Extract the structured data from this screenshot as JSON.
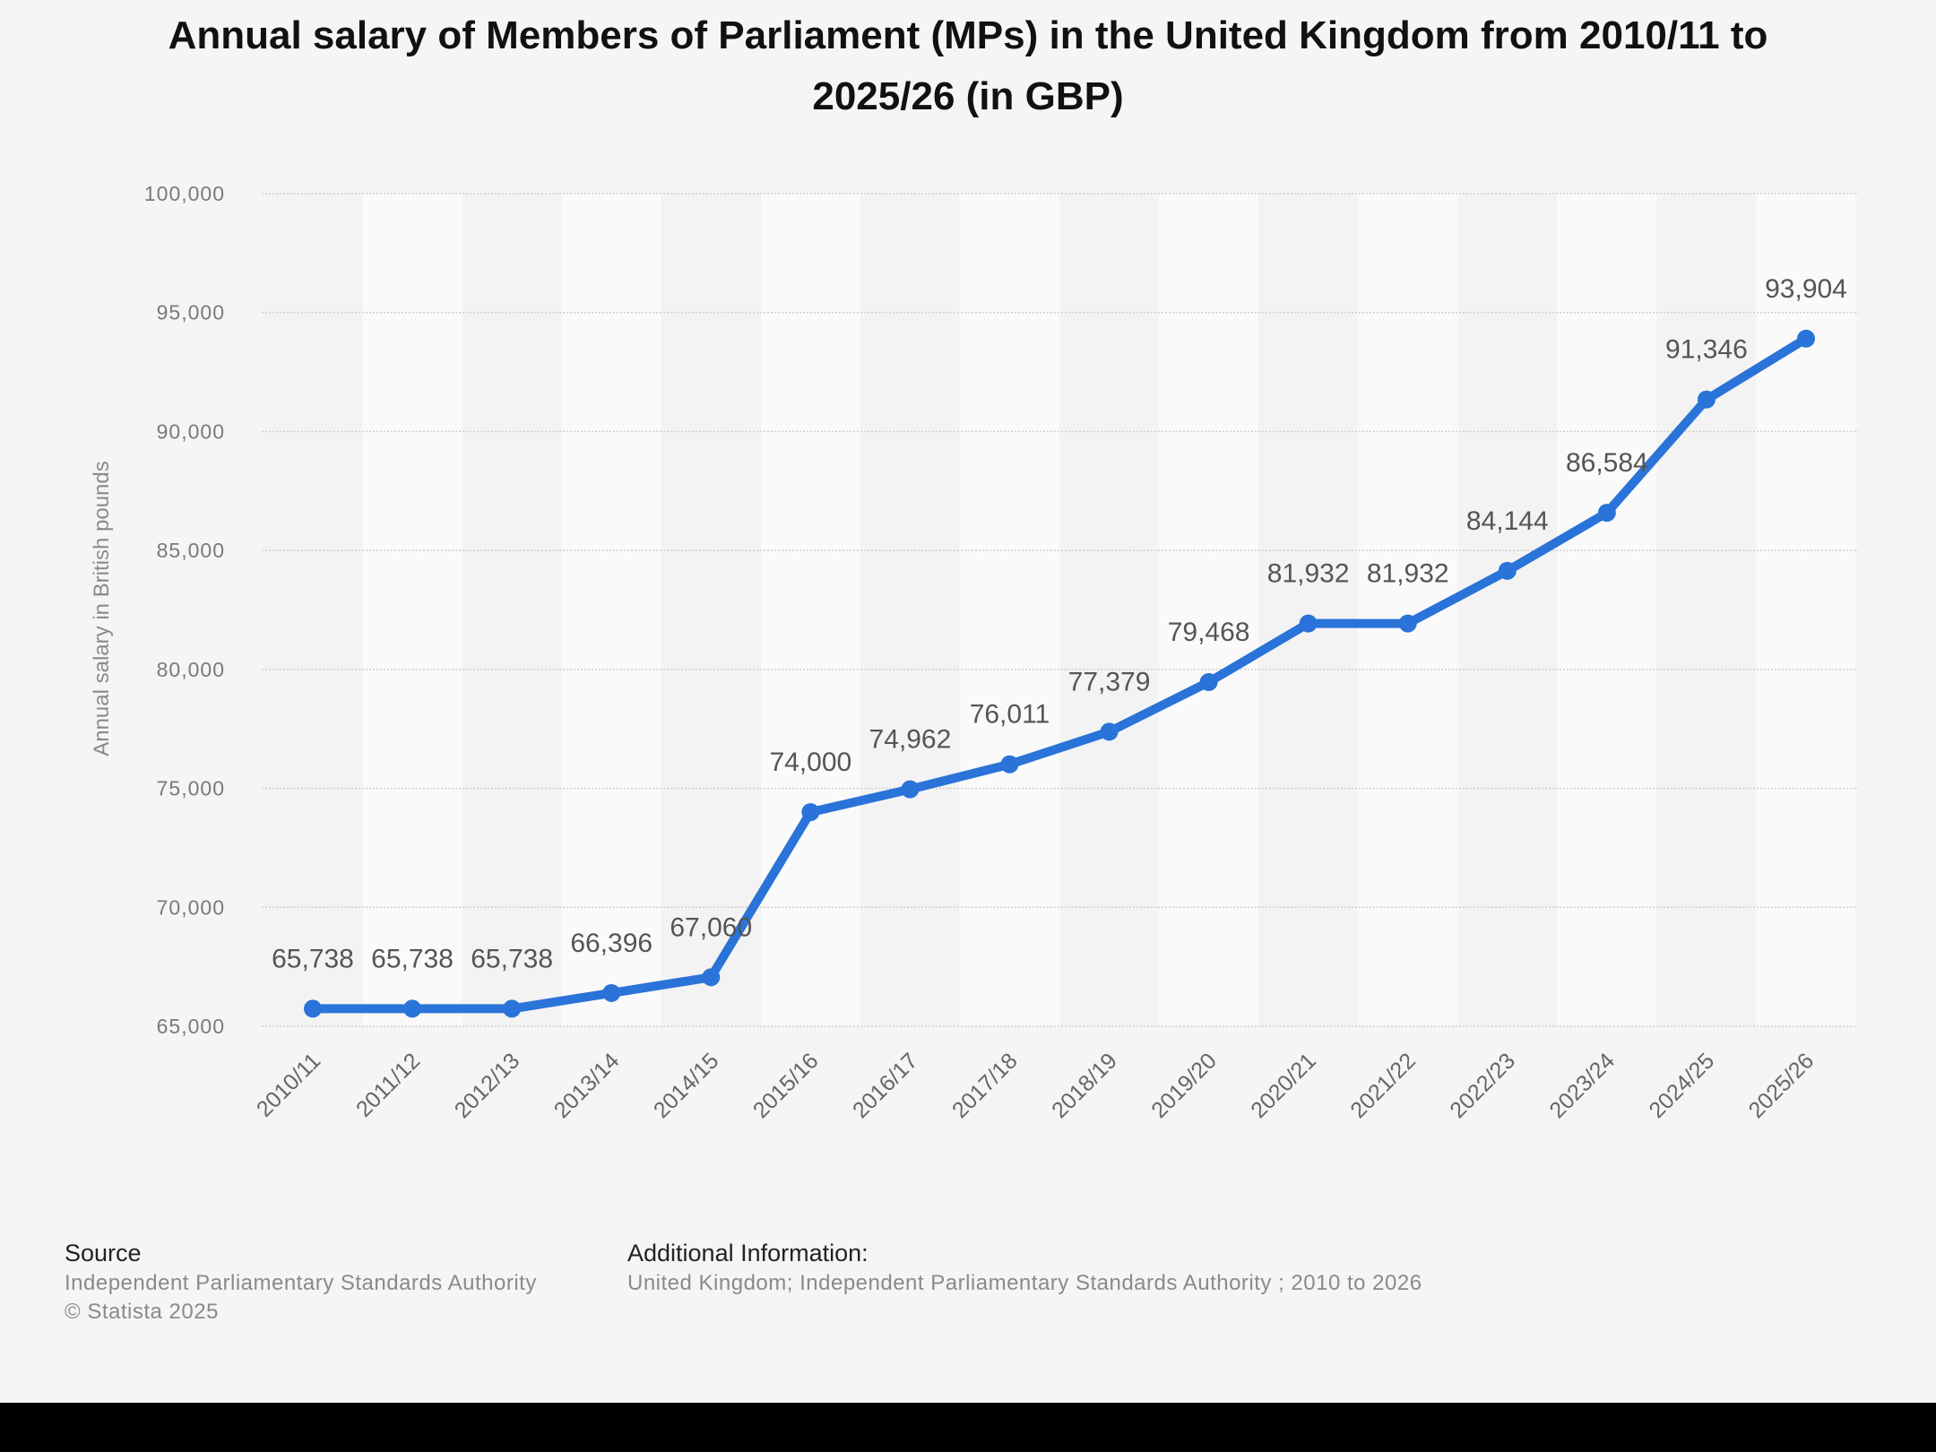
{
  "chart_data": {
    "type": "line",
    "title": "Annual salary of Members of Parliament (MPs) in the United Kingdom from 2010/11 to 2025/26 (in GBP)",
    "title_lines": [
      "Annual salary of Members of Parliament (MPs) in the United Kingdom from 2010/11 to",
      "2025/26 (in GBP)"
    ],
    "xlabel": "",
    "ylabel": "Annual salary in British pounds",
    "ylim": [
      65000,
      100000
    ],
    "yticks": [
      65000,
      70000,
      75000,
      80000,
      85000,
      90000,
      95000,
      100000
    ],
    "ytick_labels": [
      "65,000",
      "70,000",
      "75,000",
      "80,000",
      "85,000",
      "90,000",
      "95,000",
      "100,000"
    ],
    "grid": true,
    "legend": "none",
    "categories": [
      "2010/11",
      "2011/12",
      "2012/13",
      "2013/14",
      "2014/15",
      "2015/16",
      "2016/17",
      "2017/18",
      "2018/19",
      "2019/20",
      "2020/21",
      "2021/22",
      "2022/23",
      "2023/24",
      "2024/25",
      "2025/26"
    ],
    "series": [
      {
        "name": "Annual salary",
        "color": "#2a73d9",
        "values": [
          65738,
          65738,
          65738,
          66396,
          67060,
          74000,
          74962,
          76011,
          77379,
          79468,
          81932,
          81932,
          84144,
          86584,
          91346,
          93904
        ],
        "labels": [
          "65,738",
          "65,738",
          "65,738",
          "66,396",
          "67,060",
          "74,000",
          "74,962",
          "76,011",
          "77,379",
          "79,468",
          "81,932",
          "81,932",
          "84,144",
          "86,584",
          "91,346",
          "93,904"
        ]
      }
    ]
  },
  "footer": {
    "source_heading": "Source",
    "source_lines": [
      "Independent Parliamentary Standards Authority",
      "© Statista 2025"
    ],
    "info_heading": "Additional Information:",
    "info_text": "United Kingdom; Independent Parliamentary Standards Authority ; 2010 to 2026"
  },
  "colors": {
    "line": "#2a73d9",
    "background": "#f5f5f5",
    "stripe_dark": "#f3f3f3",
    "stripe_light": "#fafafa",
    "grid": "#cfcfcf"
  }
}
